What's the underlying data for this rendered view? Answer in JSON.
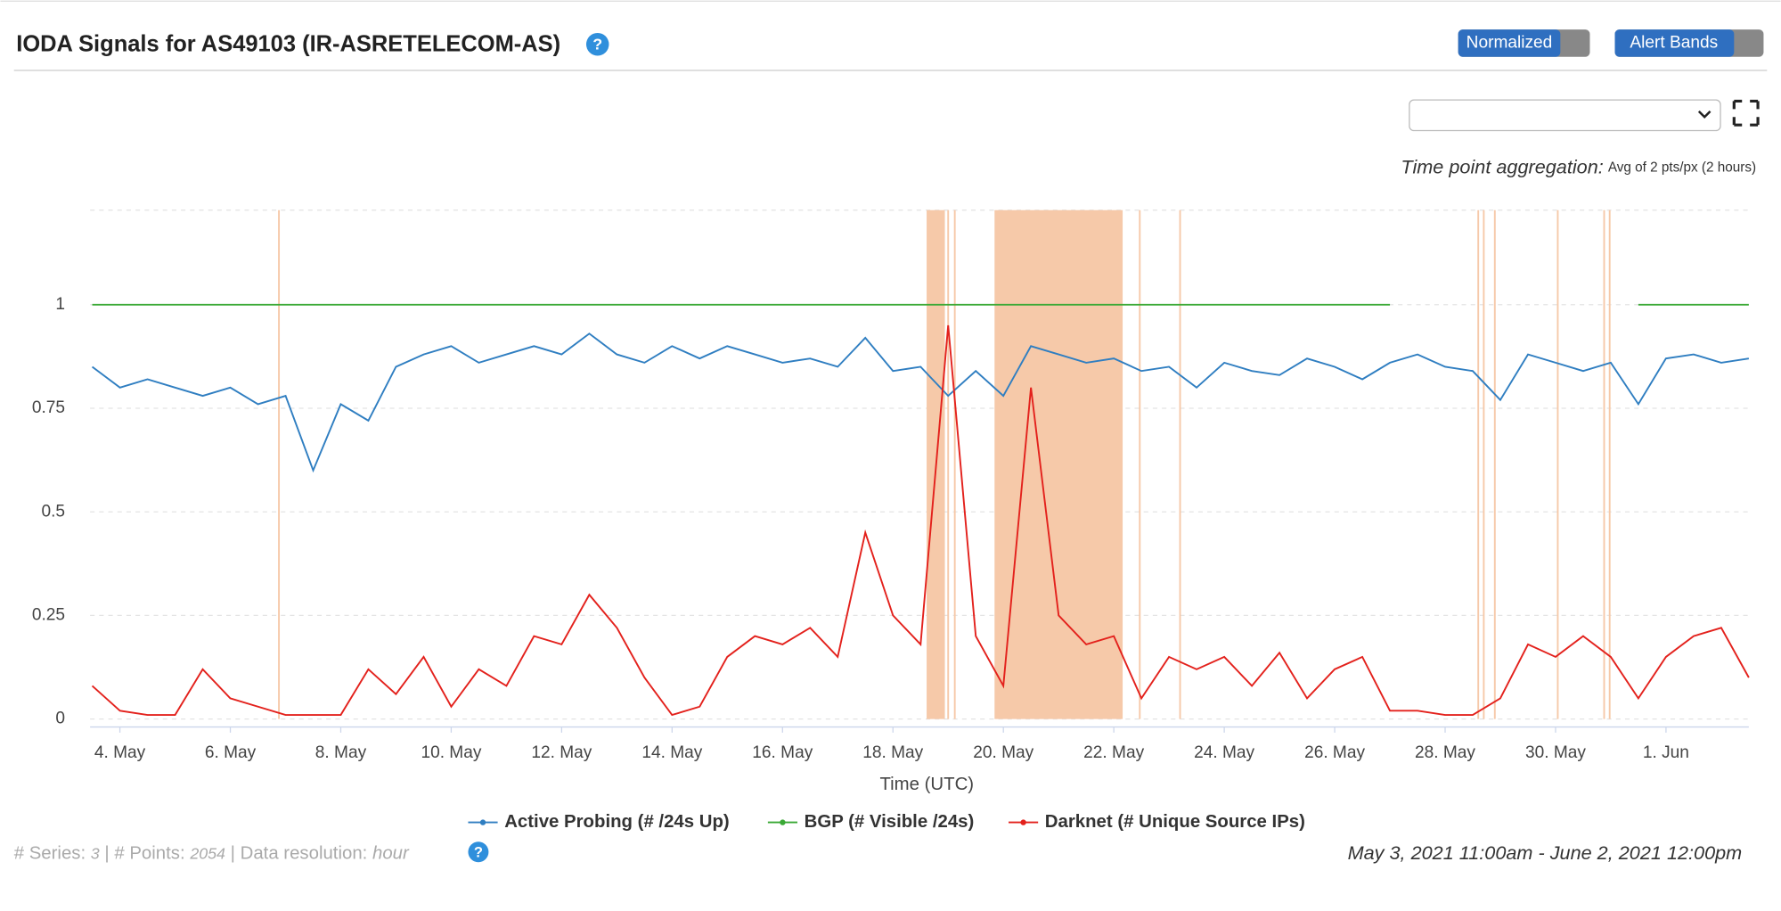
{
  "header": {
    "title": "IODA Signals for AS49103 (IR-ASRETELECOM-AS)",
    "buttons": [
      "Normalized",
      "Alert Bands"
    ],
    "aggregation_label": "Time point aggregation:",
    "aggregation_value": "Avg of 2 pts/px (2 hours)"
  },
  "chart_data": {
    "type": "line",
    "x_label": "Time (UTC)",
    "x": [
      3.5,
      4,
      4.5,
      5,
      5.5,
      6,
      6.5,
      7,
      7.5,
      8,
      8.5,
      9,
      9.5,
      10,
      10.5,
      11,
      11.5,
      12,
      12.5,
      13,
      13.5,
      14,
      14.5,
      15,
      15.5,
      16,
      16.5,
      17,
      17.5,
      18,
      18.5,
      19,
      19.5,
      20,
      20.5,
      21,
      21.5,
      22,
      22.5,
      23,
      23.5,
      24,
      24.5,
      25,
      25.5,
      26,
      26.5,
      27,
      27.5,
      28,
      28.5,
      29,
      29.5,
      30,
      30.5,
      31,
      31.5,
      32,
      32.5,
      33,
      33.5
    ],
    "series": [
      {
        "name": "Active Probing (# /24s Up)",
        "color": "#2f7ec1",
        "values": [
          0.85,
          0.8,
          0.82,
          0.8,
          0.78,
          0.8,
          0.76,
          0.78,
          0.6,
          0.76,
          0.72,
          0.85,
          0.88,
          0.9,
          0.86,
          0.88,
          0.9,
          0.88,
          0.93,
          0.88,
          0.86,
          0.9,
          0.87,
          0.9,
          0.88,
          0.86,
          0.87,
          0.85,
          0.92,
          0.84,
          0.85,
          0.78,
          0.84,
          0.78,
          0.9,
          0.88,
          0.86,
          0.87,
          0.84,
          0.85,
          0.8,
          0.86,
          0.84,
          0.83,
          0.87,
          0.85,
          0.82,
          0.86,
          0.88,
          0.85,
          0.84,
          0.77,
          0.88,
          0.86,
          0.84,
          0.86,
          0.76,
          0.87,
          0.88,
          0.86,
          0.87
        ]
      },
      {
        "name": "BGP (# Visible /24s)",
        "color": "#3aa935",
        "values": [
          1,
          1,
          1,
          1,
          1,
          1,
          1,
          1,
          1,
          1,
          1,
          1,
          1,
          1,
          1,
          1,
          1,
          1,
          1,
          1,
          1,
          1,
          1,
          1,
          1,
          1,
          1,
          1,
          1,
          1,
          1,
          1,
          1,
          1,
          1,
          1,
          1,
          1,
          1,
          1,
          1,
          1,
          1,
          1,
          1,
          1,
          1,
          1,
          null,
          null,
          null,
          null,
          null,
          null,
          null,
          null,
          1,
          1,
          1,
          1,
          1
        ]
      },
      {
        "name": "Darknet (# Unique Source IPs)",
        "color": "#e3211c",
        "values": [
          0.08,
          0.02,
          0.01,
          0.01,
          0.12,
          0.05,
          0.03,
          0.01,
          0.01,
          0.01,
          0.12,
          0.06,
          0.15,
          0.03,
          0.12,
          0.08,
          0.2,
          0.18,
          0.3,
          0.22,
          0.1,
          0.01,
          0.03,
          0.15,
          0.2,
          0.18,
          0.22,
          0.15,
          0.45,
          0.25,
          0.18,
          0.95,
          0.2,
          0.08,
          0.8,
          0.25,
          0.18,
          0.2,
          0.05,
          0.15,
          0.12,
          0.15,
          0.08,
          0.16,
          0.05,
          0.12,
          0.15,
          0.02,
          0.02,
          0.01,
          0.01,
          0.05,
          0.18,
          0.15,
          0.2,
          0.15,
          0.05,
          0.15,
          0.2,
          0.22,
          0.1
        ]
      }
    ],
    "alert_bands": [
      [
        18.61,
        18.94
      ],
      [
        19.84,
        22.16
      ]
    ],
    "alert_lines": [
      6.88,
      19.0,
      19.12,
      22.47,
      23.2,
      28.6,
      28.7,
      28.9,
      30.04,
      30.88,
      30.98
    ],
    "alert_color": "#f6c9a9",
    "xlim": [
      3.46,
      33.5
    ],
    "ylim": [
      0,
      1.25
    ],
    "xticks": [
      {
        "value": 4,
        "label": "4. May"
      },
      {
        "value": 6,
        "label": "6. May"
      },
      {
        "value": 8,
        "label": "8. May"
      },
      {
        "value": 10,
        "label": "10. May"
      },
      {
        "value": 12,
        "label": "12. May"
      },
      {
        "value": 14,
        "label": "14. May"
      },
      {
        "value": 16,
        "label": "16. May"
      },
      {
        "value": 18,
        "label": "18. May"
      },
      {
        "value": 20,
        "label": "20. May"
      },
      {
        "value": 22,
        "label": "22. May"
      },
      {
        "value": 24,
        "label": "24. May"
      },
      {
        "value": 26,
        "label": "26. May"
      },
      {
        "value": 28,
        "label": "28. May"
      },
      {
        "value": 30,
        "label": "30. May"
      },
      {
        "value": 32,
        "label": "1. Jun"
      }
    ],
    "yticks": [
      0,
      0.25,
      0.5,
      0.75,
      1
    ],
    "grid": true
  },
  "footer": {
    "series_label": "# Series:",
    "series_count": "3",
    "points_label": "| # Points:",
    "points_count": "2054",
    "resolution_label": "| Data resolution:",
    "resolution": "hour",
    "date_range": "May 3, 2021 11:00am - June 2, 2021 12:00pm"
  }
}
